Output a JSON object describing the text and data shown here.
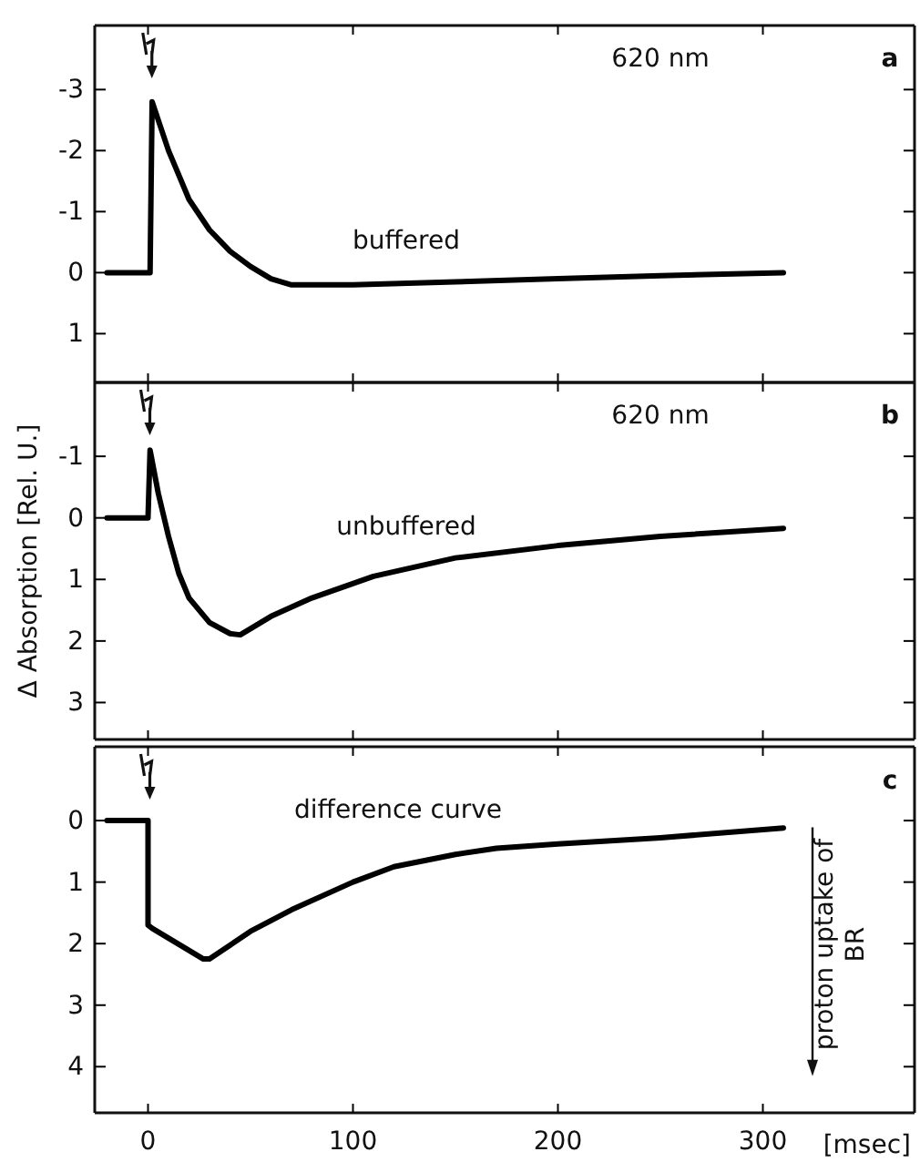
{
  "chart_data": [
    {
      "type": "line",
      "xlim": [
        -26,
        374
      ],
      "xticks": [
        0,
        100,
        200,
        300
      ],
      "ylim": [
        1.8,
        -4.05
      ],
      "yticks": [
        -3,
        -2,
        -1,
        0,
        1
      ],
      "tick_labels": "y",
      "grid": false,
      "marker": "none",
      "line_style": "solid",
      "series": [
        {
          "color": "#000000",
          "x": [
            -20,
            1,
            2,
            5,
            10,
            15,
            20,
            30,
            40,
            50,
            60,
            70,
            80,
            100,
            150,
            200,
            250,
            310
          ],
          "values": [
            0,
            0,
            -2.8,
            -2.5,
            -2.0,
            -1.6,
            -1.2,
            -0.7,
            -0.35,
            -0.1,
            0.1,
            0.2,
            0.2,
            0.2,
            0.15,
            0.1,
            0.05,
            0
          ]
        }
      ],
      "annotations": [
        "620 nm",
        "a",
        "buffered"
      ]
    },
    {
      "type": "line",
      "xlim": [
        -26,
        374
      ],
      "xticks": [
        0,
        100,
        200,
        300
      ],
      "ylim": [
        3.6,
        -2.2
      ],
      "yticks": [
        -1,
        0,
        1,
        2,
        3
      ],
      "tick_labels": "y",
      "ylabel": "Δ Absorption [Rel. U.]",
      "grid": false,
      "marker": "none",
      "line_style": "solid",
      "series": [
        {
          "color": "#000000",
          "x": [
            -20,
            0,
            1,
            5,
            10,
            15,
            20,
            30,
            40,
            45,
            60,
            80,
            110,
            150,
            200,
            250,
            310
          ],
          "values": [
            0,
            0,
            -1.1,
            -0.4,
            0.3,
            0.9,
            1.3,
            1.7,
            1.88,
            1.9,
            1.6,
            1.3,
            0.95,
            0.65,
            0.45,
            0.3,
            0.17
          ]
        }
      ],
      "annotations": [
        "620 nm",
        "b",
        "unbuffered"
      ]
    },
    {
      "type": "line",
      "xlim": [
        -26,
        374
      ],
      "xticks": [
        0,
        100,
        200,
        300
      ],
      "ylim": [
        4.75,
        -1.2
      ],
      "yticks": [
        0,
        1,
        2,
        3,
        4
      ],
      "xlabel": "[msec]",
      "grid": false,
      "marker": "none",
      "line_style": "solid",
      "series": [
        {
          "color": "#000000",
          "x": [
            -20,
            0,
            0,
            2,
            27,
            30,
            50,
            70,
            100,
            120,
            150,
            170,
            200,
            250,
            310
          ],
          "values": [
            0,
            0,
            1.7,
            1.75,
            2.25,
            2.25,
            1.8,
            1.45,
            1.0,
            0.75,
            0.55,
            0.45,
            0.38,
            0.28,
            0.12
          ]
        }
      ],
      "annotations": [
        "c",
        "difference curve",
        "proton uptake of BR"
      ]
    }
  ]
}
